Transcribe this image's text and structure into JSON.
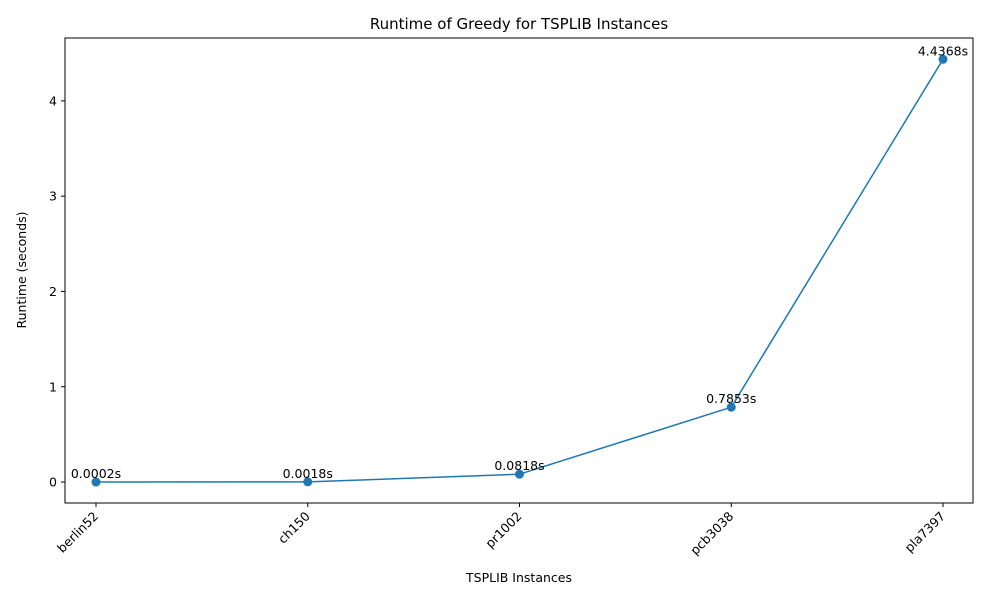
{
  "chart_data": {
    "type": "line",
    "title": "Runtime of Greedy for TSPLIB Instances",
    "xlabel": "TSPLIB Instances",
    "ylabel": "Runtime (seconds)",
    "categories": [
      "berlin52",
      "ch150",
      "pr1002",
      "pcb3038",
      "pla7397"
    ],
    "series": [
      {
        "values": [
          0.0002,
          0.0018,
          0.0818,
          0.7853,
          4.4368
        ],
        "labels": [
          "0.0002s",
          "0.0018s",
          "0.0818s",
          "0.7853s",
          "4.4368s"
        ],
        "color": "#1f77b4",
        "marker": "circle"
      }
    ],
    "yticks": [
      0,
      1,
      2,
      3,
      4
    ],
    "ytick_labels": [
      "0",
      "1",
      "2",
      "3",
      "4"
    ],
    "ylim": [
      -0.22,
      4.66
    ],
    "grid": false,
    "legend": "none",
    "xtick_rotation": 45
  }
}
